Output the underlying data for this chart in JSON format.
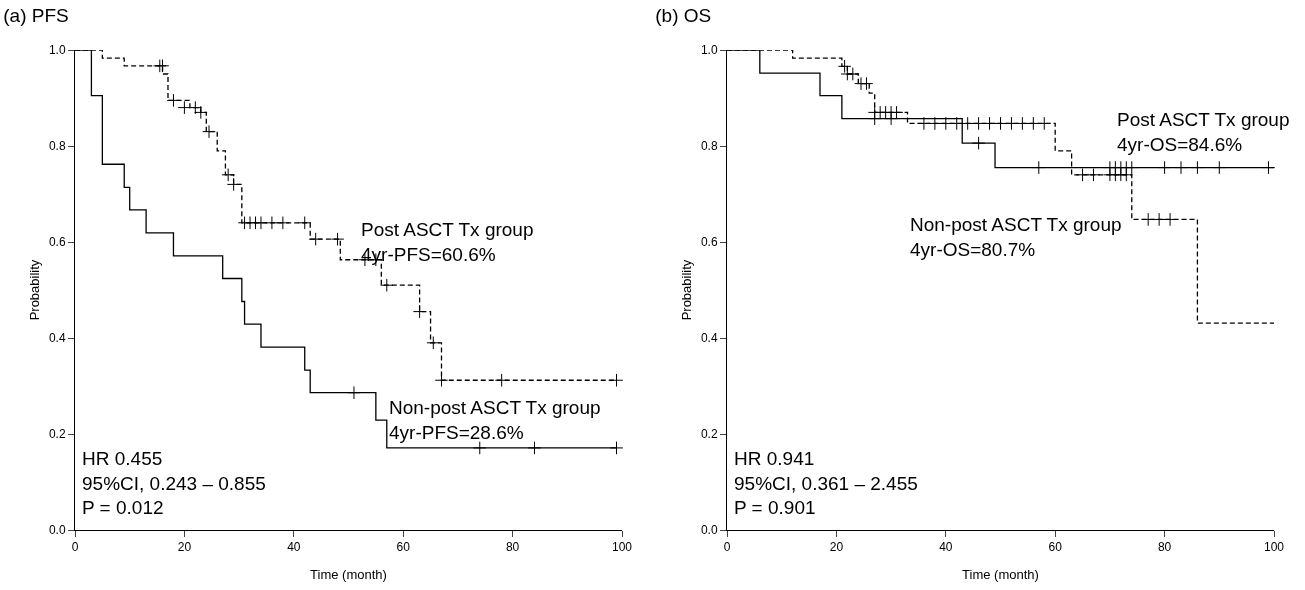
{
  "chart_data": [
    {
      "type": "step",
      "title": "(a) PFS",
      "xlabel": "Time (month)",
      "ylabel": "Probability",
      "xlim": [
        0,
        100
      ],
      "ylim": [
        0,
        1
      ],
      "xticks": [
        0,
        20,
        40,
        60,
        80,
        100
      ],
      "yticks": [
        {
          "value": 0,
          "label": "0.0"
        },
        {
          "value": 0.2,
          "label": "0.2"
        },
        {
          "value": 0.4,
          "label": "0.4"
        },
        {
          "value": 0.6,
          "label": "0.6"
        },
        {
          "value": 0.8,
          "label": "0.8"
        },
        {
          "value": 1,
          "label": "1.0"
        }
      ],
      "grid": false,
      "series": [
        {
          "color": "#000000",
          "line_style": "dashed",
          "x": [
            0,
            5,
            9,
            16,
            17,
            21,
            23,
            24,
            26,
            27.5,
            29,
            30.5,
            43,
            48.5,
            56,
            63,
            65,
            67,
            99
          ],
          "values": [
            1,
            0.983,
            0.967,
            0.95,
            0.895,
            0.88,
            0.87,
            0.83,
            0.79,
            0.74,
            0.72,
            0.64,
            0.606,
            0.563,
            0.51,
            0.455,
            0.39,
            0.312,
            0.312
          ]
        },
        {
          "color": "#000000",
          "line_style": "solid",
          "x": [
            0,
            3,
            5,
            9,
            10,
            13,
            18,
            27,
            30.5,
            31,
            34,
            42,
            43,
            55,
            57,
            99
          ],
          "values": [
            1,
            0.905,
            0.762,
            0.714,
            0.667,
            0.619,
            0.571,
            0.524,
            0.476,
            0.429,
            0.381,
            0.333,
            0.286,
            0.229,
            0.171,
            0.171
          ]
        },
        {
          "type": "scatter",
          "color": "#000000",
          "marker": "cross",
          "x": [
            15.5,
            16,
            18,
            20,
            22,
            23,
            24.5,
            28,
            29,
            31,
            32,
            33,
            34,
            36,
            38,
            42,
            44,
            48,
            53,
            55,
            57,
            63,
            65.5,
            67,
            78,
            99
          ],
          "values": [
            0.967,
            0.967,
            0.895,
            0.88,
            0.88,
            0.87,
            0.83,
            0.74,
            0.72,
            0.64,
            0.64,
            0.64,
            0.64,
            0.64,
            0.64,
            0.64,
            0.606,
            0.606,
            0.563,
            0.563,
            0.51,
            0.455,
            0.39,
            0.312,
            0.312,
            0.312
          ]
        },
        {
          "type": "scatter",
          "color": "#000000",
          "marker": "cross",
          "x": [
            51,
            74,
            84,
            99
          ],
          "values": [
            0.286,
            0.171,
            0.171,
            0.171
          ]
        }
      ],
      "annotations": [
        "Post ASCT Tx group\n4yr-PFS=60.6%",
        "Non-post ASCT Tx group\n4yr-PFS=28.6%",
        "HR 0.455\n95%CI, 0.243 – 0.855\nP = 0.012"
      ]
    },
    {
      "type": "step",
      "title": "(b) OS",
      "xlabel": "Time (month)",
      "ylabel": "Probability",
      "xlim": [
        0,
        100
      ],
      "ylim": [
        0,
        1
      ],
      "xticks": [
        0,
        20,
        40,
        60,
        80,
        100
      ],
      "yticks": [
        {
          "value": 0,
          "label": "0.0"
        },
        {
          "value": 0.2,
          "label": "0.2"
        },
        {
          "value": 0.4,
          "label": "0.4"
        },
        {
          "value": 0.6,
          "label": "0.6"
        },
        {
          "value": 0.8,
          "label": "0.8"
        },
        {
          "value": 1,
          "label": "1.0"
        }
      ],
      "grid": false,
      "series": [
        {
          "color": "#000000",
          "line_style": "dashed",
          "x": [
            0,
            12,
            21,
            22,
            24,
            26,
            27,
            33,
            60,
            63,
            74,
            86,
            100
          ],
          "values": [
            1,
            0.983,
            0.966,
            0.95,
            0.93,
            0.91,
            0.87,
            0.847,
            0.79,
            0.74,
            0.647,
            0.431,
            0.431
          ]
        },
        {
          "color": "#000000",
          "line_style": "solid",
          "x": [
            0,
            6,
            17,
            21,
            43,
            49,
            100
          ],
          "values": [
            1,
            0.952,
            0.905,
            0.857,
            0.806,
            0.755,
            0.755
          ]
        },
        {
          "type": "scatter",
          "color": "#000000",
          "marker": "cross",
          "x": [
            21.5,
            22,
            23,
            24.5,
            25.5,
            27,
            28,
            29,
            30,
            31,
            36,
            38,
            40,
            42,
            44,
            46,
            48,
            50,
            52,
            54,
            56,
            58,
            65,
            67,
            70,
            71,
            72,
            73,
            77,
            79,
            81
          ],
          "values": [
            0.966,
            0.95,
            0.95,
            0.93,
            0.93,
            0.87,
            0.87,
            0.87,
            0.87,
            0.87,
            0.847,
            0.847,
            0.847,
            0.847,
            0.847,
            0.847,
            0.847,
            0.847,
            0.847,
            0.847,
            0.847,
            0.847,
            0.74,
            0.74,
            0.74,
            0.74,
            0.74,
            0.74,
            0.647,
            0.647,
            0.647
          ]
        },
        {
          "type": "scatter",
          "color": "#000000",
          "marker": "cross",
          "x": [
            27,
            30,
            46,
            57,
            70,
            71,
            72,
            73,
            74,
            80,
            83,
            86,
            90,
            99
          ],
          "values": [
            0.857,
            0.857,
            0.806,
            0.755,
            0.755,
            0.755,
            0.755,
            0.755,
            0.755,
            0.755,
            0.755,
            0.755,
            0.755,
            0.755
          ]
        }
      ],
      "annotations": [
        "Post ASCT Tx group\n4yr-OS=84.6%",
        "Non-post ASCT Tx group\n4yr-OS=80.7%",
        "HR 0.941\n95%CI, 0.361 – 2.455\nP = 0.901"
      ]
    }
  ]
}
